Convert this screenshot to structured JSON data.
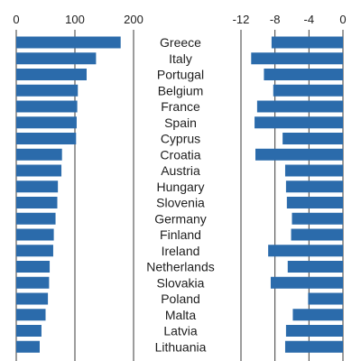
{
  "chart_data": [
    {
      "type": "bar",
      "orientation": "horizontal",
      "xlim": [
        0,
        200
      ],
      "xticks": [
        0,
        100,
        200
      ],
      "tick_labels": [
        "0",
        "100",
        "200"
      ],
      "categories": [
        "Greece",
        "Italy",
        "Portugal",
        "Belgium",
        "France",
        "Spain",
        "Cyprus",
        "Croatia",
        "Austria",
        "Hungary",
        "Slovenia",
        "Germany",
        "Finland",
        "Ireland",
        "Netherlands",
        "Slovakia",
        "Poland",
        "Malta",
        "Latvia",
        "Lithuania"
      ],
      "values": [
        178,
        136,
        120,
        105,
        104,
        103,
        102,
        78,
        77,
        71,
        70,
        67,
        64,
        63,
        57,
        56,
        54,
        50,
        43,
        40
      ],
      "color": "#2b6bab"
    },
    {
      "type": "bar",
      "orientation": "horizontal",
      "xlim": [
        -12,
        0
      ],
      "xticks": [
        -12,
        -8,
        -4,
        0
      ],
      "tick_labels": [
        "-12",
        "-8",
        "-4",
        "0"
      ],
      "categories": [
        "Greece",
        "Italy",
        "Portugal",
        "Belgium",
        "France",
        "Spain",
        "Cyprus",
        "Croatia",
        "Austria",
        "Hungary",
        "Slovenia",
        "Germany",
        "Finland",
        "Ireland",
        "Netherlands",
        "Slovakia",
        "Poland",
        "Malta",
        "Latvia",
        "Lithuania"
      ],
      "values": [
        -8.4,
        -10.8,
        -9.3,
        -8.2,
        -10.1,
        -10.4,
        -7.1,
        -10.3,
        -6.8,
        -6.7,
        -6.6,
        -6.0,
        -6.1,
        -8.8,
        -6.5,
        -8.5,
        -4.1,
        -5.9,
        -6.7,
        -6.8
      ],
      "color": "#2b6bab"
    }
  ]
}
